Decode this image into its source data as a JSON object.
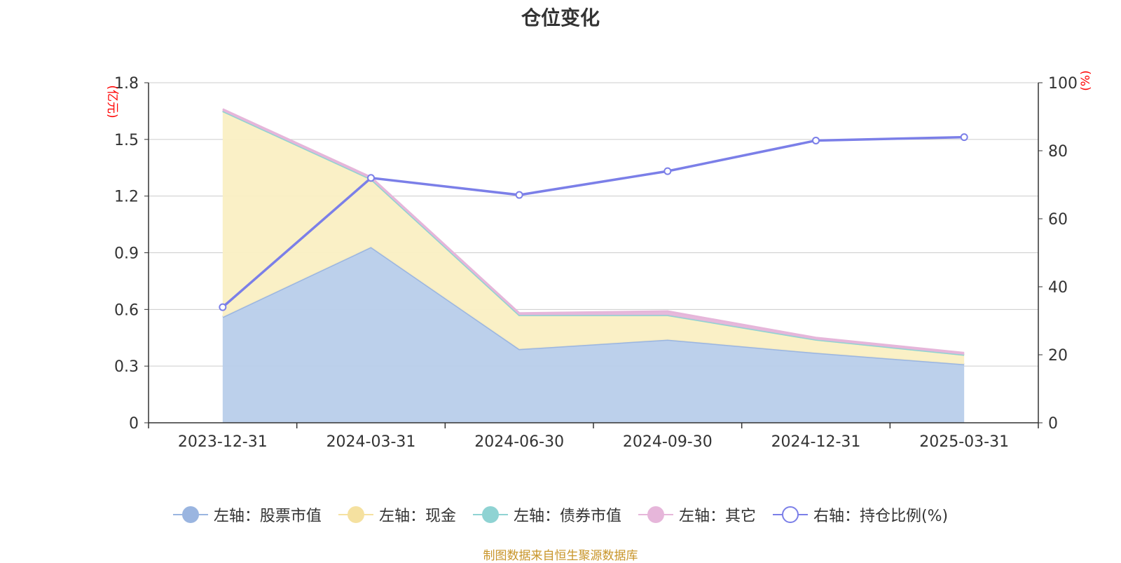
{
  "title": "仓位变化",
  "source_note": "制图数据来自恒生聚源数据库",
  "colors": {
    "stock": "#9ab5e0",
    "stock_fill": "#b8cdea",
    "cash": "#f5e1a0",
    "cash_fill": "#faefc3",
    "bond": "#8fd3d3",
    "other": "#e6b6da",
    "ratio": "#7b7fe8",
    "axis_unit": "#ff0000",
    "grid": "#cccccc",
    "axis": "#333333"
  },
  "legend": [
    {
      "key": "stock",
      "label": "左轴：股票市值",
      "style": "filled"
    },
    {
      "key": "cash",
      "label": "左轴：现金",
      "style": "filled"
    },
    {
      "key": "bond",
      "label": "左轴：债券市值",
      "style": "filled"
    },
    {
      "key": "other",
      "label": "左轴：其它",
      "style": "filled"
    },
    {
      "key": "ratio",
      "label": "右轴：持仓比例(%)",
      "style": "hollow"
    }
  ],
  "chart_data": {
    "type": "area",
    "title": "仓位变化",
    "categories": [
      "2023-12-31",
      "2024-03-31",
      "2024-06-30",
      "2024-09-30",
      "2024-12-31",
      "2025-03-31"
    ],
    "left_axis": {
      "unit": "(亿元)",
      "ylim": [
        0,
        1.8
      ],
      "ticks": [
        "0",
        "0.3",
        "0.6",
        "0.9",
        "1.2",
        "1.5",
        "1.8"
      ]
    },
    "right_axis": {
      "unit": "(%)",
      "ylim": [
        0,
        100
      ],
      "ticks": [
        "0",
        "20",
        "40",
        "60",
        "80",
        "100"
      ]
    },
    "grid": true,
    "legend_position": "bottom",
    "series": [
      {
        "name": "左轴：股票市值",
        "axis": "left",
        "stacked": true,
        "values": [
          0.56,
          0.93,
          0.39,
          0.44,
          0.37,
          0.31
        ]
      },
      {
        "name": "左轴：现金",
        "axis": "left",
        "stacked": true,
        "values": [
          1.09,
          0.36,
          0.18,
          0.13,
          0.07,
          0.05
        ]
      },
      {
        "name": "左轴：债券市值",
        "axis": "left",
        "stacked": true,
        "values": [
          0,
          0,
          0,
          0,
          0,
          0
        ]
      },
      {
        "name": "左轴：其它",
        "axis": "left",
        "stacked": true,
        "values": [
          0.01,
          0.01,
          0.01,
          0.02,
          0.01,
          0.01
        ]
      },
      {
        "name": "右轴：持仓比例(%)",
        "axis": "right",
        "type": "line",
        "values": [
          34,
          72,
          67,
          74,
          83,
          84
        ]
      }
    ]
  }
}
